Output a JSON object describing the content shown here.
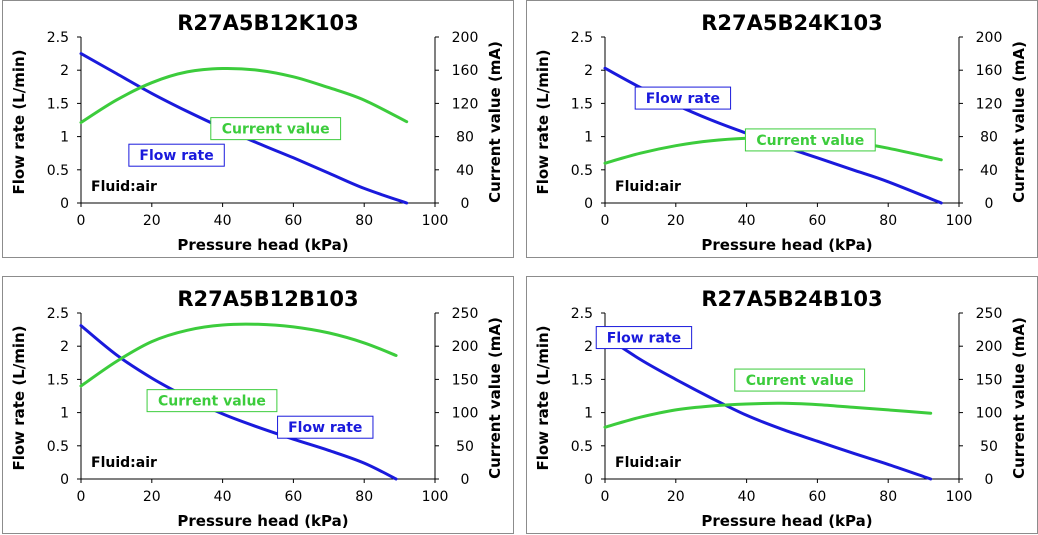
{
  "chart_data": [
    {
      "type": "line",
      "title": "R27A5B12K103",
      "xlabel": "Pressure head (kPa)",
      "ylabel": "Flow rate (L/min)",
      "y2label": "Current value (mA)",
      "annotation": "Fluid:air",
      "xlim": [
        0,
        100
      ],
      "xticks": [
        "0",
        "20",
        "40",
        "60",
        "80",
        "100"
      ],
      "ylim": [
        0,
        2.5
      ],
      "yticks": [
        "0",
        "0.5",
        "1",
        "1.5",
        "2",
        "2.5"
      ],
      "y2lim": [
        0,
        200
      ],
      "y2ticks": [
        "0",
        "40",
        "80",
        "120",
        "160",
        "200"
      ],
      "series": [
        {
          "name": "Flow rate",
          "axis": "left",
          "color": "#1a1adc",
          "x": [
            0,
            10,
            20,
            30,
            40,
            50,
            60,
            70,
            80,
            92
          ],
          "y": [
            2.25,
            1.95,
            1.65,
            1.38,
            1.13,
            0.9,
            0.68,
            0.45,
            0.22,
            0
          ]
        },
        {
          "name": "Current value",
          "axis": "right",
          "color": "#3ccc3c",
          "x": [
            0,
            10,
            20,
            30,
            40,
            50,
            60,
            70,
            80,
            92
          ],
          "y": [
            97,
            124,
            145,
            158,
            162,
            160,
            152,
            139,
            124,
            98
          ]
        }
      ],
      "labels": [
        {
          "series": 1,
          "text": "Current value",
          "at": [
            55,
            1.12
          ]
        },
        {
          "series": 0,
          "text": "Flow rate",
          "at": [
            27,
            0.72
          ]
        }
      ]
    },
    {
      "type": "line",
      "title": "R27A5B24K103",
      "xlabel": "Pressure head (kPa)",
      "ylabel": "Flow rate (L/min)",
      "y2label": "Current value (mA)",
      "annotation": "Fluid:air",
      "xlim": [
        0,
        100
      ],
      "xticks": [
        "0",
        "20",
        "40",
        "60",
        "80",
        "100"
      ],
      "ylim": [
        0,
        2.5
      ],
      "yticks": [
        "0",
        "0.5",
        "1",
        "1.5",
        "2",
        "2.5"
      ],
      "y2lim": [
        0,
        200
      ],
      "y2ticks": [
        "0",
        "40",
        "80",
        "120",
        "160",
        "200"
      ],
      "series": [
        {
          "name": "Flow rate",
          "axis": "left",
          "color": "#1a1adc",
          "x": [
            0,
            10,
            20,
            30,
            40,
            50,
            60,
            70,
            80,
            95
          ],
          "y": [
            2.03,
            1.74,
            1.48,
            1.25,
            1.05,
            0.86,
            0.68,
            0.5,
            0.32,
            0
          ]
        },
        {
          "name": "Current value",
          "axis": "right",
          "color": "#3ccc3c",
          "x": [
            0,
            10,
            20,
            30,
            40,
            50,
            60,
            70,
            80,
            95
          ],
          "y": [
            48,
            60,
            69,
            75,
            78,
            79,
            77,
            73,
            66,
            52
          ]
        }
      ],
      "labels": [
        {
          "series": 0,
          "text": "Flow rate",
          "at": [
            22,
            1.58
          ]
        },
        {
          "series": 1,
          "text": "Current value",
          "at": [
            58,
            0.95
          ]
        }
      ]
    },
    {
      "type": "line",
      "title": "R27A5B12B103",
      "xlabel": "Pressure head (kPa)",
      "ylabel": "Flow rate (L/min)",
      "y2label": "Current value (mA)",
      "annotation": "Fluid:air",
      "xlim": [
        0,
        100
      ],
      "xticks": [
        "0",
        "20",
        "40",
        "60",
        "80",
        "100"
      ],
      "ylim": [
        0,
        2.5
      ],
      "yticks": [
        "0",
        "0.5",
        "1",
        "1.5",
        "2",
        "2.5"
      ],
      "y2lim": [
        0,
        250
      ],
      "y2ticks": [
        "0",
        "50",
        "100",
        "150",
        "200",
        "250"
      ],
      "series": [
        {
          "name": "Flow rate",
          "axis": "left",
          "color": "#1a1adc",
          "x": [
            0,
            10,
            20,
            30,
            40,
            50,
            60,
            70,
            80,
            89
          ],
          "y": [
            2.31,
            1.87,
            1.52,
            1.23,
            0.98,
            0.78,
            0.6,
            0.43,
            0.24,
            0
          ]
        },
        {
          "name": "Current value",
          "axis": "right",
          "color": "#3ccc3c",
          "x": [
            0,
            10,
            20,
            30,
            40,
            50,
            60,
            70,
            80,
            89
          ],
          "y": [
            140,
            177,
            207,
            224,
            232,
            233,
            229,
            220,
            205,
            186
          ]
        }
      ],
      "labels": [
        {
          "series": 1,
          "text": "Current value",
          "at": [
            37,
            1.18
          ]
        },
        {
          "series": 0,
          "text": "Flow rate",
          "at": [
            69,
            0.78
          ]
        }
      ]
    },
    {
      "type": "line",
      "title": "R27A5B24B103",
      "xlabel": "Pressure head (kPa)",
      "ylabel": "Flow rate (L/min)",
      "y2label": "Current value (mA)",
      "annotation": "Fluid:air",
      "xlim": [
        0,
        100
      ],
      "xticks": [
        "0",
        "20",
        "40",
        "60",
        "80",
        "100"
      ],
      "ylim": [
        0,
        2.5
      ],
      "yticks": [
        "0",
        "0.5",
        "1",
        "1.5",
        "2",
        "2.5"
      ],
      "y2lim": [
        0,
        250
      ],
      "y2ticks": [
        "0",
        "50",
        "100",
        "150",
        "200",
        "250"
      ],
      "series": [
        {
          "name": "Flow rate",
          "axis": "left",
          "color": "#1a1adc",
          "x": [
            0,
            10,
            20,
            30,
            40,
            50,
            60,
            70,
            80,
            92
          ],
          "y": [
            2.15,
            1.8,
            1.5,
            1.22,
            0.96,
            0.75,
            0.57,
            0.39,
            0.22,
            0
          ]
        },
        {
          "name": "Current value",
          "axis": "right",
          "color": "#3ccc3c",
          "x": [
            0,
            10,
            20,
            30,
            40,
            50,
            60,
            70,
            80,
            92
          ],
          "y": [
            78,
            93,
            104,
            110,
            113,
            114,
            112,
            108,
            104,
            99
          ]
        }
      ],
      "labels": [
        {
          "series": 0,
          "text": "Flow rate",
          "at": [
            11,
            2.13
          ]
        },
        {
          "series": 1,
          "text": "Current value",
          "at": [
            55,
            1.49
          ]
        }
      ]
    }
  ]
}
